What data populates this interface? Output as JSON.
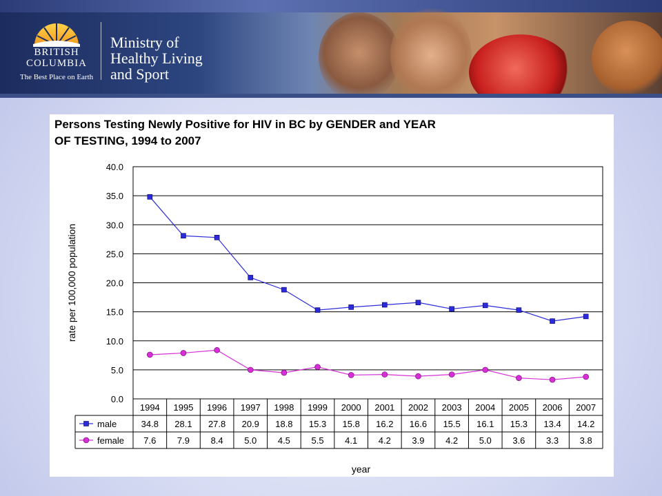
{
  "header": {
    "brand_line_1": "BRITISH",
    "brand_line_2": "COLUMBIA",
    "tagline": "The Best Place on Earth",
    "ministry_line_1": "Ministry of",
    "ministry_line_2": "Healthy Living",
    "ministry_line_3": "and Sport"
  },
  "colors": {
    "male": "#2b2bd9",
    "female": "#d62fd6",
    "banner_dark": "#1d2c5e"
  },
  "chart_data": {
    "type": "line",
    "title_line_1": "Persons Testing Newly Positive for HIV in BC by GENDER and YEAR",
    "title_line_2": "OF TESTING, 1994 to 2007",
    "xlabel": "year",
    "ylabel": "rate per 100,000 population",
    "ylim": [
      0,
      40
    ],
    "yticks": [
      "0.0",
      "5.0",
      "10.0",
      "15.0",
      "20.0",
      "25.0",
      "30.0",
      "35.0",
      "40.0"
    ],
    "grid": true,
    "categories": [
      "1994",
      "1995",
      "1996",
      "1997",
      "1998",
      "1999",
      "2000",
      "2001",
      "2002",
      "2003",
      "2004",
      "2005",
      "2006",
      "2007"
    ],
    "series": [
      {
        "name": "male",
        "marker": "square",
        "values": [
          34.8,
          28.1,
          27.8,
          20.9,
          18.8,
          15.3,
          15.8,
          16.2,
          16.6,
          15.5,
          16.1,
          15.3,
          13.4,
          14.2
        ],
        "labels": [
          "34.8",
          "28.1",
          "27.8",
          "20.9",
          "18.8",
          "15.3",
          "15.8",
          "16.2",
          "16.6",
          "15.5",
          "16.1",
          "15.3",
          "13.4",
          "14.2"
        ]
      },
      {
        "name": "female",
        "marker": "circle",
        "values": [
          7.6,
          7.9,
          8.4,
          5.0,
          4.5,
          5.5,
          4.1,
          4.2,
          3.9,
          4.2,
          5.0,
          3.6,
          3.3,
          3.8
        ],
        "labels": [
          "7.6",
          "7.9",
          "8.4",
          "5.0",
          "4.5",
          "5.5",
          "4.1",
          "4.2",
          "3.9",
          "4.2",
          "5.0",
          "3.6",
          "3.3",
          "3.8"
        ]
      }
    ]
  }
}
